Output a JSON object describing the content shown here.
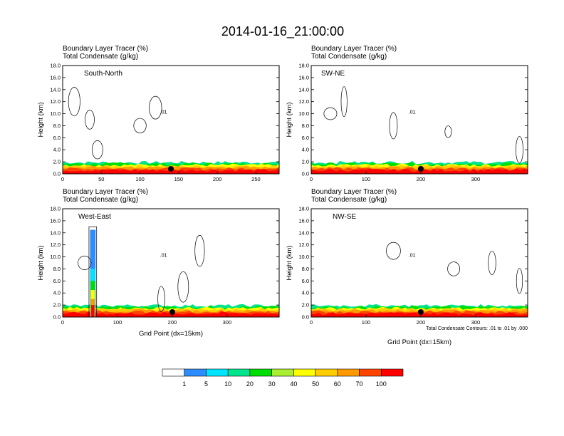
{
  "title": "2014-01-16_21:00:00",
  "field_label_1": "Boundary Layer Tracer   (%)",
  "field_label_2": "Total Condensate   (g/kg)",
  "ylabel": "Height (km)",
  "xlabel": "Grid Point (dx=15km)",
  "contour_note": "Total Condensate Contours: .01 to .01 by .000",
  "colors": {
    "levels": [
      "#ffffff",
      "#2d8cff",
      "#00e5ff",
      "#00e58c",
      "#00dd00",
      "#aaee33",
      "#ffff00",
      "#ffcc00",
      "#ff9900",
      "#ff4400",
      "#ff0000"
    ]
  },
  "colorbar_labels": [
    "1",
    "5",
    "10",
    "20",
    "30",
    "40",
    "50",
    "60",
    "70",
    "100"
  ],
  "chart_data": [
    {
      "type": "heatmap",
      "panel_label": "South-North",
      "contour_label": ".01",
      "ylim": [
        0,
        18
      ],
      "xlim": [
        0,
        280
      ],
      "yticks": [
        "0.0",
        "2.0",
        "4.0",
        "6.0",
        "8.0",
        "10.0",
        "12.0",
        "14.0",
        "16.0",
        "18.0"
      ],
      "xticks": [
        "0",
        "50",
        "100",
        "150",
        "200",
        "250"
      ],
      "xtick_values": [
        0,
        50,
        100,
        150,
        200,
        250
      ],
      "marker_x": 140
    },
    {
      "type": "heatmap",
      "panel_label": "SW-NE",
      "contour_label": ".01",
      "ylim": [
        0,
        18
      ],
      "xlim": [
        0,
        395
      ],
      "yticks": [
        "0.0",
        "2.0",
        "4.0",
        "6.0",
        "8.0",
        "10.0",
        "12.0",
        "14.0",
        "16.0",
        "18.0"
      ],
      "xticks": [
        "0",
        "100",
        "200",
        "300"
      ],
      "xtick_values": [
        0,
        100,
        200,
        300
      ],
      "marker_x": 200
    },
    {
      "type": "heatmap",
      "panel_label": "West-East",
      "contour_label": ".01",
      "ylim": [
        0,
        18
      ],
      "xlim": [
        0,
        395
      ],
      "yticks": [
        "0.0",
        "2.0",
        "4.0",
        "6.0",
        "8.0",
        "10.0",
        "12.0",
        "14.0",
        "16.0",
        "18.0"
      ],
      "xticks": [
        "0",
        "100",
        "200",
        "300"
      ],
      "xtick_values": [
        0,
        100,
        200,
        300
      ],
      "marker_x": 200
    },
    {
      "type": "heatmap",
      "panel_label": "NW-SE",
      "contour_label": ".01",
      "ylim": [
        0,
        18
      ],
      "xlim": [
        0,
        395
      ],
      "yticks": [
        "0.0",
        "2.0",
        "4.0",
        "6.0",
        "8.0",
        "10.0",
        "12.0",
        "14.0",
        "16.0",
        "18.0"
      ],
      "xticks": [
        "0",
        "100",
        "200",
        "300"
      ],
      "xtick_values": [
        0,
        100,
        200,
        300
      ],
      "marker_x": 200
    }
  ]
}
